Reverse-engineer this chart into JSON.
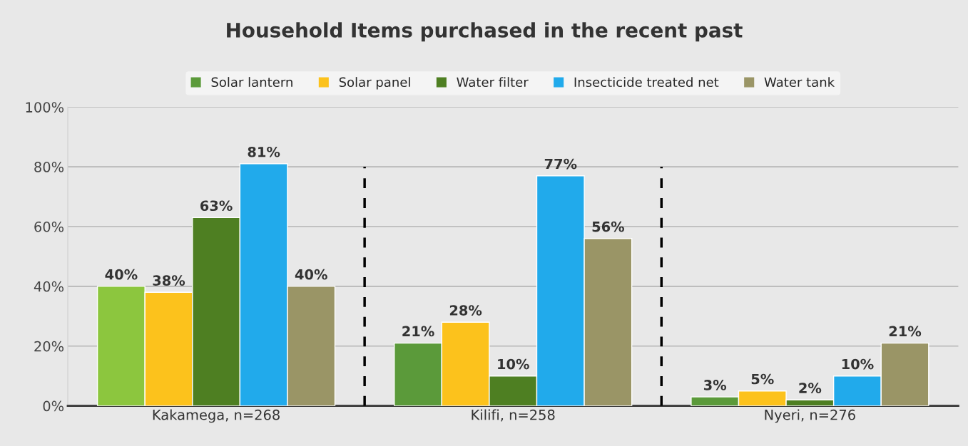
{
  "chart_data": {
    "type": "bar",
    "title": "Household Items purchased in the recent past",
    "categories": [
      "Kakamega, n=268",
      "Kilifi, n=258",
      "Nyeri, n=276"
    ],
    "series": [
      {
        "name": "Solar lantern",
        "color": "#5b9a3a",
        "colors": [
          "#8cc63e",
          "#5b9a3a",
          "#5b9a3a"
        ],
        "values": [
          40,
          21,
          3
        ]
      },
      {
        "name": "Solar panel",
        "color": "#fcc21c",
        "values": [
          38,
          28,
          5
        ]
      },
      {
        "name": "Water filter",
        "color": "#4e7f22",
        "values": [
          63,
          10,
          2
        ]
      },
      {
        "name": "Insecticide treated net",
        "color": "#21aaeb",
        "values": [
          81,
          77,
          10
        ]
      },
      {
        "name": "Water tank",
        "color": "#9a9566",
        "values": [
          40,
          56,
          21
        ]
      }
    ],
    "ylim": [
      0,
      100
    ],
    "yticks": [
      {
        "value": 0,
        "label": "0%"
      },
      {
        "value": 20,
        "label": "20%"
      },
      {
        "value": 40,
        "label": "40%"
      },
      {
        "value": 60,
        "label": "60%"
      },
      {
        "value": 80,
        "label": "80%"
      },
      {
        "value": 100,
        "label": "100%"
      }
    ],
    "value_labels": [
      [
        "40%",
        "21%",
        "3%"
      ],
      [
        "38%",
        "28%",
        "5%"
      ],
      [
        "63%",
        "10%",
        "2%"
      ],
      [
        "81%",
        "77%",
        "10%"
      ],
      [
        "40%",
        "56%",
        "21%"
      ]
    ],
    "grid": "y",
    "legend": "top"
  }
}
